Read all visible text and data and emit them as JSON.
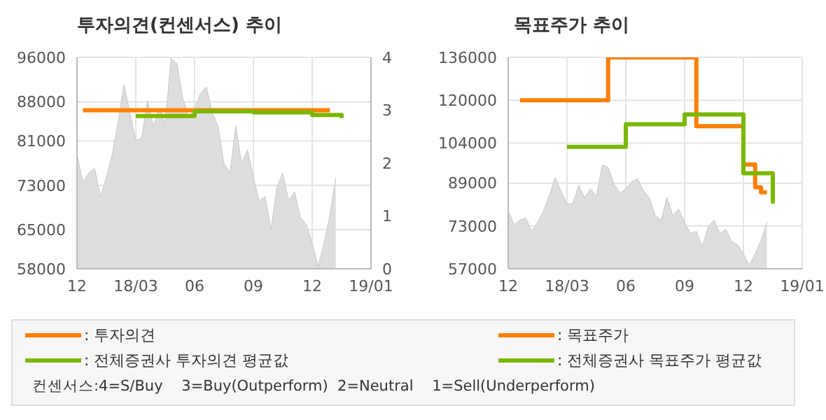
{
  "chart_data": [
    {
      "type": "step",
      "title": "투자의견(컨센서스) 추이",
      "categories": [
        "12",
        null,
        null,
        null,
        null,
        null,
        null,
        null,
        null,
        null,
        "18/03",
        null,
        null,
        null,
        null,
        null,
        null,
        null,
        null,
        null,
        "06",
        null,
        null,
        null,
        null,
        null,
        null,
        null,
        null,
        null,
        "09",
        null,
        null,
        null,
        null,
        null,
        null,
        null,
        null,
        null,
        "12",
        null,
        null,
        null,
        null,
        null,
        null,
        null,
        null,
        null,
        "19/01"
      ],
      "ylim": [
        58000,
        96000
      ],
      "yticks": [
        58000,
        65000,
        73000,
        81000,
        88000,
        96000
      ],
      "y2lim": [
        0,
        4
      ],
      "y2ticks": [
        0,
        1,
        2,
        3,
        4
      ],
      "grid": true,
      "legend": "bottom",
      "annotations": [
        "컨센서스:4=S/Buy    3=Buy(Outperform)  2=Neutral    1=Sell(Underperform)"
      ],
      "series": [
        {
          "type": "area",
          "color": "#dddddd",
          "values": [
            78600,
            73500,
            75200,
            76000,
            71000,
            74400,
            78600,
            84400,
            91100,
            86000,
            81100,
            81500,
            88200,
            83600,
            86900,
            84000,
            95800,
            94900,
            88600,
            85300,
            86900,
            89500,
            90700,
            86100,
            83600,
            76900,
            75200,
            83600,
            76900,
            79400,
            74400,
            70200,
            71000,
            65100,
            72700,
            75200,
            70200,
            71800,
            67200,
            66000,
            62600,
            58400,
            62600,
            67600,
            74400,
            null,
            null,
            null,
            null,
            null,
            null
          ]
        },
        {
          "name": ": 투자의견",
          "color": "#ff7f00",
          "axis": "y2",
          "values": [
            null,
            3,
            null,
            null,
            null,
            null,
            null,
            null,
            null,
            null,
            null,
            null,
            null,
            null,
            null,
            null,
            null,
            null,
            null,
            null,
            null,
            null,
            null,
            null,
            null,
            null,
            null,
            null,
            null,
            null,
            null,
            null,
            null,
            null,
            null,
            null,
            null,
            null,
            null,
            null,
            null,
            null,
            null,
            3,
            null,
            null,
            null,
            null,
            null,
            null,
            null
          ]
        },
        {
          "name": ": 전체증권사 투자의견 평균값",
          "color": "#7ab800",
          "axis": "y2",
          "values": [
            null,
            null,
            null,
            null,
            null,
            null,
            null,
            null,
            null,
            null,
            2.89,
            null,
            null,
            null,
            null,
            null,
            null,
            null,
            null,
            null,
            2.98,
            null,
            null,
            null,
            null,
            null,
            null,
            null,
            null,
            null,
            2.96,
            null,
            null,
            null,
            null,
            null,
            null,
            null,
            null,
            null,
            2.91,
            null,
            null,
            null,
            null,
            2.85,
            null,
            null,
            null,
            null,
            null
          ]
        }
      ]
    },
    {
      "type": "step",
      "title": "목표주가 추이",
      "categories": [
        "12",
        null,
        null,
        null,
        null,
        null,
        null,
        null,
        null,
        null,
        "18/03",
        null,
        null,
        null,
        null,
        null,
        null,
        null,
        null,
        null,
        "06",
        null,
        null,
        null,
        null,
        null,
        null,
        null,
        null,
        null,
        "09",
        null,
        null,
        null,
        null,
        null,
        null,
        null,
        null,
        null,
        "12",
        null,
        null,
        null,
        null,
        null,
        null,
        null,
        null,
        null,
        "19/01"
      ],
      "ylim": [
        57000,
        136000
      ],
      "yticks": [
        57000,
        73000,
        89000,
        104000,
        120000,
        136000
      ],
      "grid": true,
      "legend": "bottom",
      "series": [
        {
          "type": "area",
          "color": "#dddddd",
          "values": [
            78600,
            73500,
            75200,
            76000,
            71000,
            74400,
            78600,
            84400,
            91100,
            86000,
            81100,
            81500,
            88200,
            83600,
            86900,
            84000,
            95800,
            94900,
            88600,
            85300,
            86900,
            89500,
            90700,
            86100,
            83600,
            76900,
            75200,
            83600,
            76900,
            79400,
            74400,
            70200,
            71000,
            65100,
            72700,
            75200,
            70200,
            71800,
            67200,
            66000,
            62600,
            58400,
            62600,
            67600,
            74400,
            null,
            null,
            null,
            null,
            null,
            null
          ]
        },
        {
          "name": ": 목표주가",
          "color": "#ff7f00",
          "values": [
            null,
            null,
            120000,
            null,
            null,
            null,
            null,
            null,
            null,
            null,
            null,
            null,
            null,
            null,
            null,
            null,
            null,
            136000,
            null,
            null,
            null,
            null,
            null,
            null,
            null,
            null,
            null,
            null,
            null,
            null,
            null,
            null,
            110300,
            null,
            null,
            null,
            null,
            null,
            null,
            null,
            96000,
            null,
            87500,
            85600,
            85600,
            null,
            null,
            null,
            null,
            null,
            null
          ]
        },
        {
          "name": ": 전체증권사 목표주가 평균값",
          "color": "#7ab800",
          "values": [
            null,
            null,
            null,
            null,
            null,
            null,
            null,
            null,
            null,
            null,
            102600,
            null,
            null,
            null,
            null,
            null,
            null,
            null,
            null,
            null,
            111000,
            null,
            null,
            null,
            null,
            null,
            null,
            null,
            null,
            null,
            114700,
            null,
            null,
            null,
            null,
            null,
            null,
            null,
            null,
            null,
            92700,
            null,
            null,
            null,
            null,
            81400,
            null,
            null,
            null,
            null,
            null
          ]
        }
      ]
    }
  ]
}
